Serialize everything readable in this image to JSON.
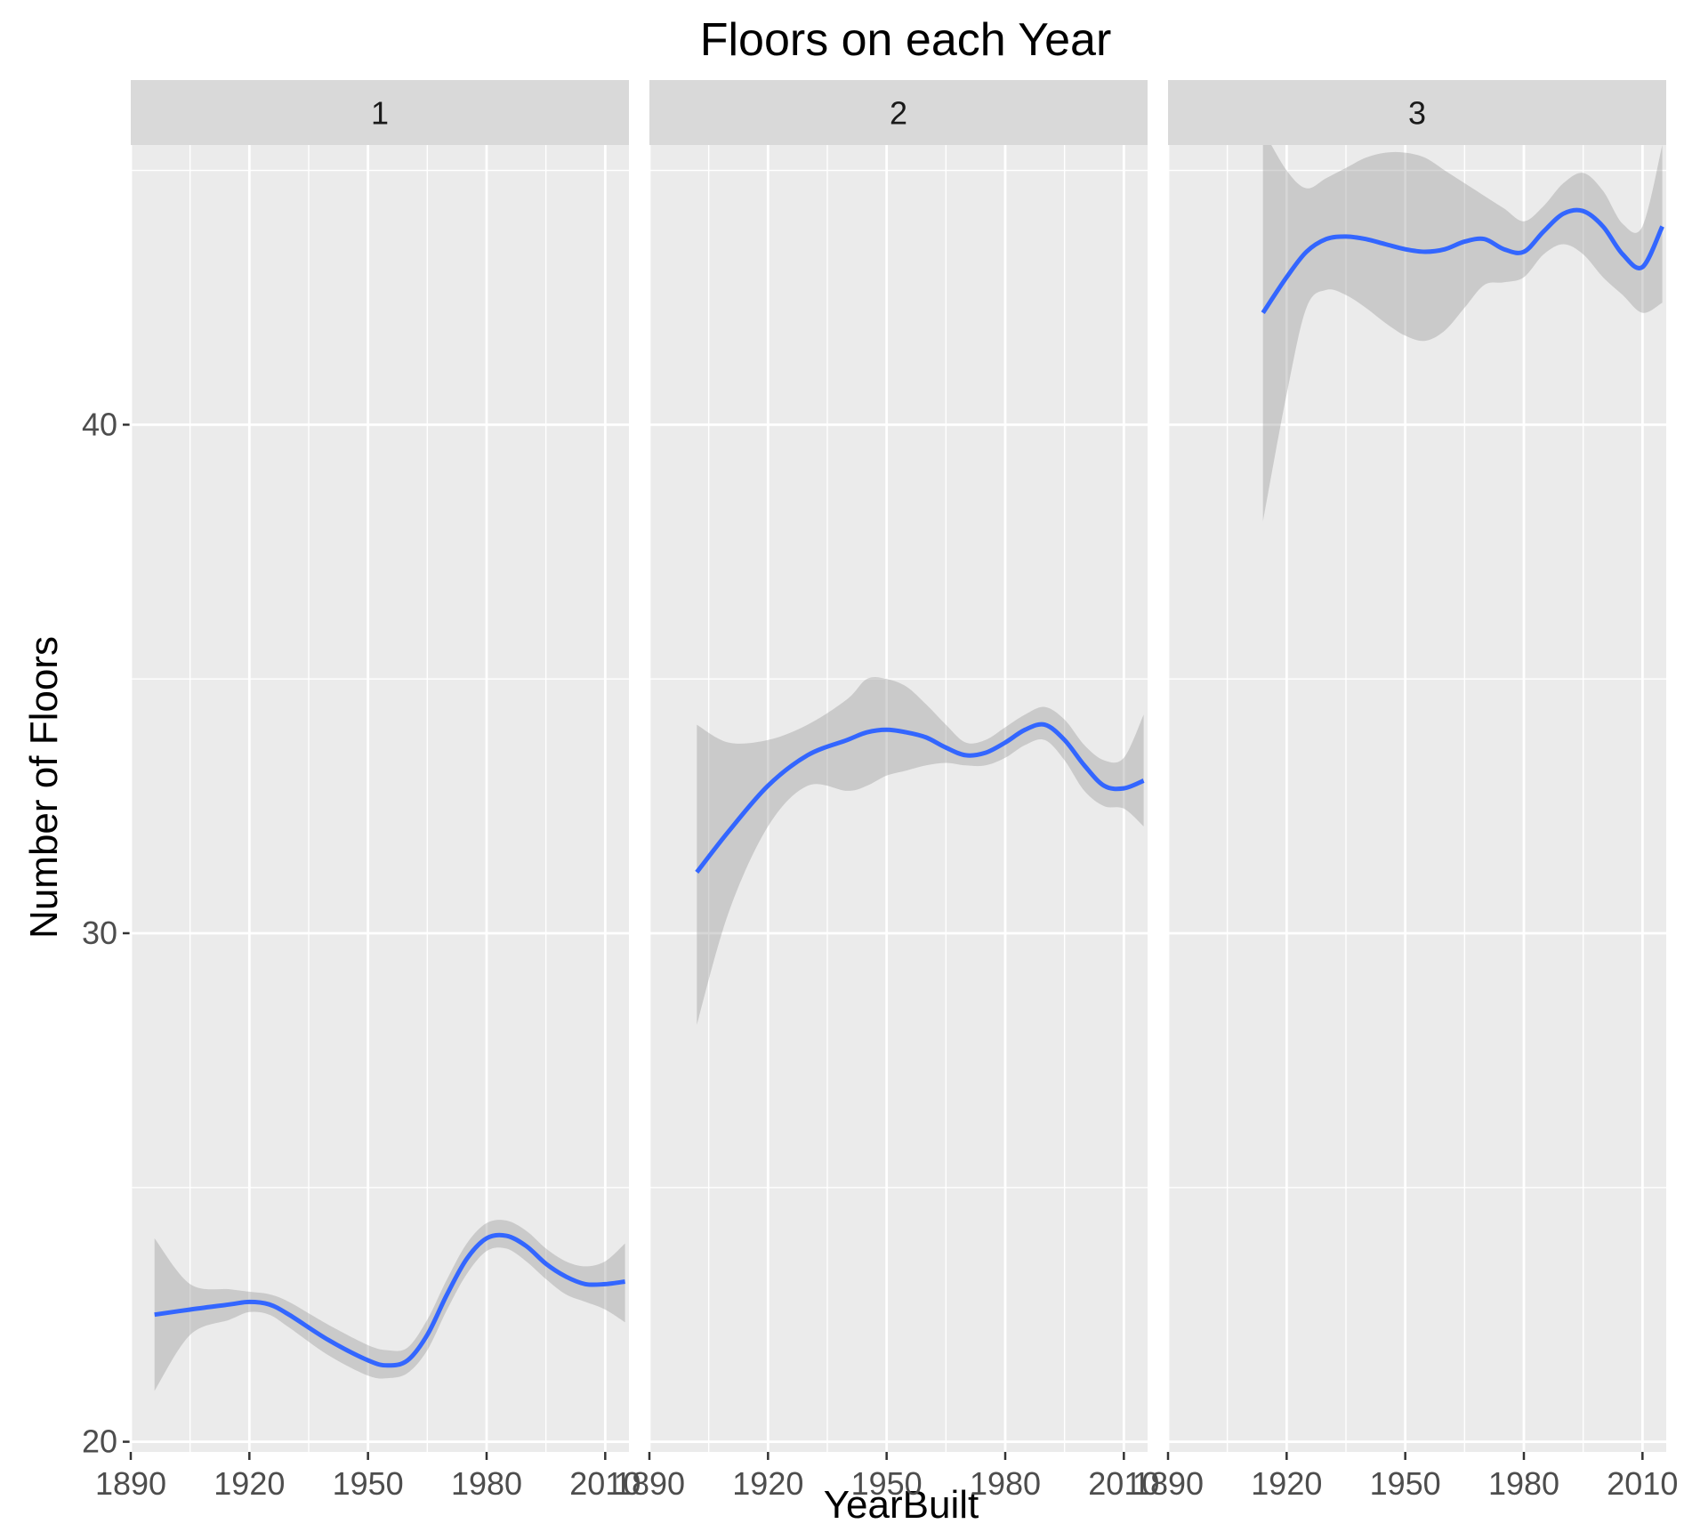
{
  "chart_data": {
    "type": "line",
    "title": "Floors on each Year",
    "xlabel": "YearBuilt",
    "ylabel": "Number of Floors",
    "xlim": [
      1890,
      2016
    ],
    "ylim": [
      19.8,
      45.5
    ],
    "x_ticks": [
      1890,
      1920,
      1950,
      1980,
      2010
    ],
    "y_ticks": [
      20,
      30,
      40
    ],
    "grid": true,
    "colors": {
      "line": "#3366FF",
      "ribbon": "#999999",
      "panel_bg": "#EBEBEB",
      "strip_bg": "#D9D9D9",
      "grid": "#FFFFFF"
    },
    "panels": [
      {
        "label": "1",
        "x": [
          1896,
          1905,
          1915,
          1920,
          1925,
          1930,
          1940,
          1950,
          1955,
          1960,
          1965,
          1970,
          1975,
          1980,
          1985,
          1990,
          1995,
          2000,
          2005,
          2010,
          2015
        ],
        "y": [
          22.5,
          22.6,
          22.7,
          22.75,
          22.7,
          22.5,
          22.0,
          21.6,
          21.5,
          21.6,
          22.1,
          22.9,
          23.6,
          24.0,
          24.05,
          23.85,
          23.5,
          23.25,
          23.1,
          23.1,
          23.15
        ],
        "lower": [
          21.0,
          22.1,
          22.4,
          22.55,
          22.5,
          22.25,
          21.7,
          21.3,
          21.25,
          21.35,
          21.8,
          22.6,
          23.3,
          23.75,
          23.8,
          23.55,
          23.2,
          22.9,
          22.75,
          22.6,
          22.35
        ],
        "upper": [
          24.0,
          23.1,
          23.0,
          22.95,
          22.9,
          22.75,
          22.3,
          21.9,
          21.8,
          21.85,
          22.4,
          23.2,
          23.9,
          24.3,
          24.35,
          24.15,
          23.8,
          23.55,
          23.45,
          23.55,
          23.9
        ]
      },
      {
        "label": "2",
        "x": [
          1902,
          1910,
          1920,
          1930,
          1940,
          1945,
          1950,
          1955,
          1960,
          1965,
          1970,
          1975,
          1980,
          1985,
          1990,
          1995,
          2000,
          2005,
          2010,
          2015
        ],
        "y": [
          31.2,
          32.0,
          32.9,
          33.5,
          33.8,
          33.95,
          34.0,
          33.95,
          33.85,
          33.65,
          33.5,
          33.55,
          33.75,
          34.0,
          34.1,
          33.8,
          33.3,
          32.9,
          32.85,
          33.0
        ],
        "lower": [
          28.2,
          30.4,
          32.1,
          32.9,
          32.8,
          32.9,
          33.1,
          33.2,
          33.3,
          33.35,
          33.3,
          33.3,
          33.45,
          33.7,
          33.8,
          33.4,
          32.8,
          32.5,
          32.45,
          32.1
        ],
        "upper": [
          34.1,
          33.75,
          33.8,
          34.1,
          34.6,
          35.0,
          35.0,
          34.85,
          34.5,
          34.1,
          33.75,
          33.8,
          34.05,
          34.3,
          34.45,
          34.2,
          33.7,
          33.4,
          33.45,
          34.3
        ]
      },
      {
        "label": "3",
        "x": [
          1914,
          1920,
          1925,
          1930,
          1935,
          1940,
          1945,
          1950,
          1955,
          1960,
          1965,
          1970,
          1975,
          1980,
          1985,
          1990,
          1995,
          2000,
          2005,
          2010,
          2015
        ],
        "y": [
          42.2,
          42.9,
          43.4,
          43.65,
          43.7,
          43.65,
          43.55,
          43.45,
          43.4,
          43.45,
          43.6,
          43.65,
          43.45,
          43.4,
          43.8,
          44.15,
          44.2,
          43.9,
          43.35,
          43.1,
          43.9
        ],
        "lower": [
          38.1,
          40.6,
          42.3,
          42.65,
          42.55,
          42.3,
          42.0,
          41.75,
          41.65,
          41.85,
          42.3,
          42.75,
          42.8,
          42.9,
          43.35,
          43.55,
          43.35,
          42.9,
          42.55,
          42.2,
          42.4
        ],
        "upper": [
          45.8,
          45.0,
          44.65,
          44.85,
          45.05,
          45.25,
          45.35,
          45.35,
          45.25,
          45.0,
          44.75,
          44.5,
          44.25,
          44.0,
          44.3,
          44.75,
          44.95,
          44.6,
          43.95,
          43.9,
          45.5
        ]
      }
    ]
  }
}
